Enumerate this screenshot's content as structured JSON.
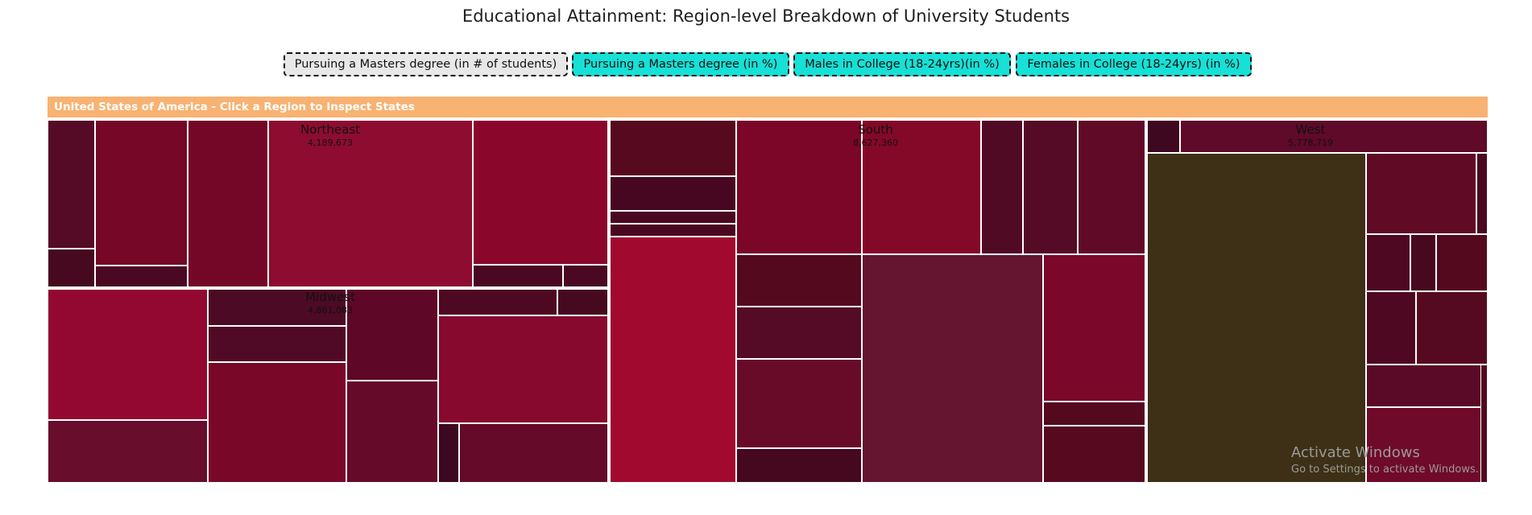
{
  "page": {
    "title": "Educational Attainment: Region-level Breakdown of University Students",
    "banner": "United States of America - Click a Region to Inspect States"
  },
  "controls": [
    {
      "label": "Pursuing a Masters degree (in # of students)",
      "fill": "#e8e8e8"
    },
    {
      "label": "Pursuing a Masters degree (in %)",
      "fill": "#17e0d6"
    },
    {
      "label": "Males in College (18-24yrs)(in %)",
      "fill": "#17e0d6"
    },
    {
      "label": "Females in College (18-24yrs) (in %)",
      "fill": "#17e0d6"
    }
  ],
  "chart_data": {
    "type": "treemap",
    "metric": "Pursuing a Masters degree (in # of students)",
    "regions": [
      {
        "name": "Northeast",
        "value_label": "4,189,673"
      },
      {
        "name": "Midwest",
        "value_label": "4,861,083"
      },
      {
        "name": "South",
        "value_label": "8,627,360"
      },
      {
        "name": "West",
        "value_label": "5,778,719"
      }
    ]
  },
  "watermark": {
    "title": "Activate Windows",
    "subtitle": "Go to Settings to activate Windows."
  }
}
